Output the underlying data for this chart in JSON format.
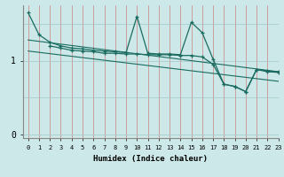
{
  "xlabel": "Humidex (Indice chaleur)",
  "bg_color": "#cce8e8",
  "line_color": "#1a6b60",
  "vgrid_color": "#d08080",
  "hgrid_color": "#a0c8c8",
  "x_min": -0.5,
  "x_max": 23,
  "y_min": -0.05,
  "y_max": 1.75,
  "yticks": [
    0,
    1
  ],
  "xticks": [
    0,
    1,
    2,
    3,
    4,
    5,
    6,
    7,
    8,
    9,
    10,
    11,
    12,
    13,
    14,
    15,
    16,
    17,
    18,
    19,
    20,
    21,
    22,
    23
  ],
  "line1_x": [
    0,
    1,
    2,
    3,
    4,
    5,
    6,
    7,
    8,
    9,
    10,
    11,
    12,
    13,
    14,
    15,
    16,
    17,
    18,
    19,
    20,
    21,
    22,
    23
  ],
  "line1_y": [
    1.65,
    1.35,
    1.25,
    1.2,
    1.17,
    1.16,
    1.14,
    1.13,
    1.12,
    1.11,
    1.6,
    1.1,
    1.09,
    1.09,
    1.08,
    1.52,
    1.38,
    1.02,
    0.68,
    0.65,
    0.58,
    0.88,
    0.86,
    0.85
  ],
  "line2_x": [
    2,
    3,
    4,
    5,
    6,
    7,
    8,
    9,
    10,
    11,
    12,
    13,
    14,
    15,
    16,
    17,
    18,
    19,
    20,
    21,
    22,
    23
  ],
  "line2_y": [
    1.2,
    1.17,
    1.14,
    1.13,
    1.12,
    1.1,
    1.1,
    1.09,
    1.09,
    1.08,
    1.08,
    1.08,
    1.07,
    1.07,
    1.05,
    0.95,
    0.68,
    0.65,
    0.58,
    0.88,
    0.85,
    0.84
  ],
  "line3_x": [
    0,
    23
  ],
  "line3_y": [
    1.28,
    0.85
  ],
  "line4_x": [
    0,
    23
  ],
  "line4_y": [
    1.13,
    0.72
  ]
}
